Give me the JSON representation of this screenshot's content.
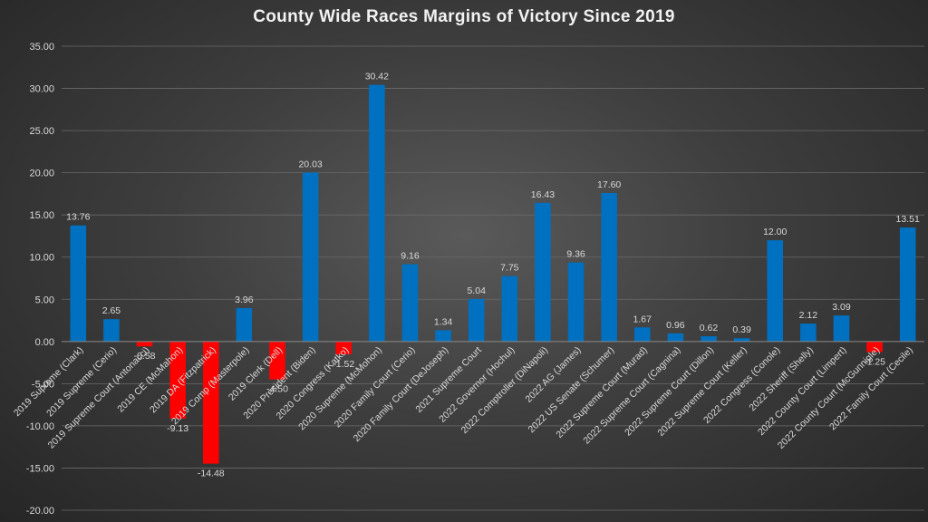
{
  "chart_data": {
    "type": "bar",
    "title": "County Wide Races Margins of Victory Since 2019",
    "xlabel": "",
    "ylabel": "",
    "ylim": [
      -20,
      35
    ],
    "ytick_step": 5,
    "ytick_labels": [
      "-20.00",
      "-15.00",
      "-10.00",
      "-5.00",
      "0.00",
      "5.00",
      "10.00",
      "15.00",
      "20.00",
      "25.00",
      "30.00",
      "35.00"
    ],
    "grid": true,
    "positive_color": "#0070c0",
    "negative_color": "#ff0000",
    "categories": [
      "2019 Supreme (Clark)",
      "2019 Supreme (Cerio)",
      "2019 Supreme Court (Antonacci)",
      "2019 CE (McMahon)",
      "2019 DA (Fitzpatrick)",
      "2019 Comp (Masterpole)",
      "2019 Clerk (Dell)",
      "2020 President (Biden)",
      "2020 Congress (Katko)",
      "2020 Supreme (McMohon)",
      "2020 Family Court (Cerio)",
      "2020 Family Court (DeJoseph)",
      "2021 Supreme Court",
      "2022 Governor (Hochul)",
      "2022 Comptroller (DiNapoli)",
      "2022 AG (James)",
      "2022 US Senate (Schumer)",
      "2022 Supreme Court (Murad)",
      "2022 Supreme Court (Cagnina)",
      "2022 Supreme Court (Dillon)",
      "2022 Supreme Court (Keller)",
      "2022 Congress (Conole)",
      "2022 Sheriff (Shelly)",
      "2022 County Court (Limpert)",
      "2022 County Court (McGunnigle)",
      "2022 Family Court (Cecile)"
    ],
    "values": [
      13.76,
      2.65,
      -0.58,
      -9.13,
      -14.48,
      3.96,
      -4.5,
      20.03,
      -1.52,
      30.42,
      9.16,
      1.34,
      5.04,
      7.75,
      16.43,
      9.36,
      17.6,
      1.67,
      0.96,
      0.62,
      0.39,
      12.0,
      2.12,
      3.09,
      -1.25,
      13.51
    ],
    "data_labels": [
      "13.76",
      "2.65",
      "-0.58",
      "-9.13",
      "-14.48",
      "3.96",
      "-4.50",
      "20.03",
      "-1.52",
      "30.42",
      "9.16",
      "1.34",
      "5.04",
      "7.75",
      "16.43",
      "9.36",
      "17.60",
      "1.67",
      "0.96",
      "0.62",
      "0.39",
      "12.00",
      "2.12",
      "3.09",
      "-1.25",
      "13.51"
    ]
  }
}
